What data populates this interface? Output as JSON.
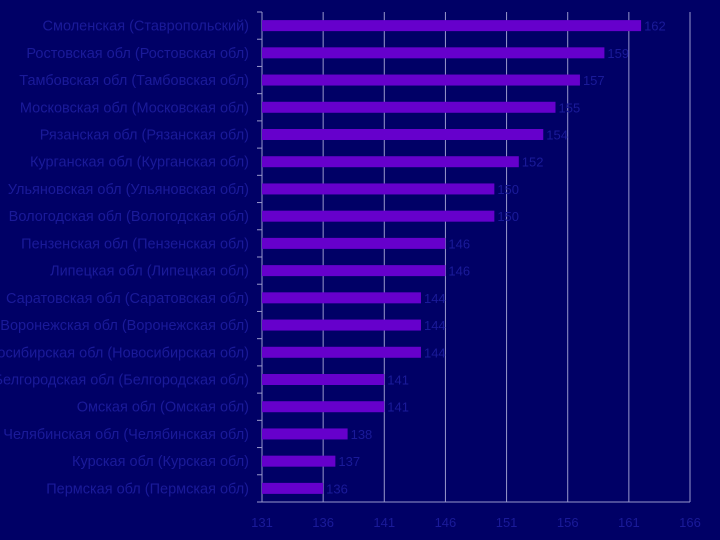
{
  "chart_data": {
    "type": "bar",
    "orientation": "horizontal",
    "categories": [
      "Смоленская (Ставропольский)",
      "Ростовская обл (Ростовская обл)",
      "Тамбовская обл (Тамбовская обл)",
      "Московская обл (Московская обл)",
      "Рязанская обл (Рязанская обл)",
      "Курганская обл (Курганская обл)",
      "Ульяновская обл (Ульяновская обл)",
      "Вологодская обл (Вологодская обл)",
      "Пензенская обл (Пензенская обл)",
      "Липецкая обл (Липецкая обл)",
      "Саратовская обл (Саратовская обл)",
      "Воронежская обл (Воронежская обл)",
      "Новосибирская обл (Новосибирская обл)",
      "Белгородская обл (Белгородская обл)",
      "Омская обл (Омская обл)",
      "Челябинская обл (Челябинская обл)",
      "Курская обл (Курская обл)",
      "Пермская обл (Пермская обл)"
    ],
    "values": [
      162,
      159,
      157,
      155,
      154,
      152,
      150,
      150,
      146,
      146,
      144,
      144,
      144,
      141,
      141,
      138,
      137,
      136
    ],
    "value_labels": [
      "162",
      "159",
      "157",
      "155",
      "154",
      "152",
      "150",
      "150",
      "146",
      "146",
      "144",
      "144",
      "144",
      "141",
      "141",
      "138",
      "137",
      "136"
    ],
    "xlim": [
      131,
      166
    ],
    "xticks": [
      131,
      136,
      141,
      146,
      151,
      156,
      161,
      166
    ],
    "grid": true,
    "title": "",
    "xlabel": "",
    "ylabel": "",
    "colors": {
      "background": "#000066",
      "bar": "#6600cc",
      "grid": "#9999cc",
      "text": "#1a1a99"
    }
  }
}
